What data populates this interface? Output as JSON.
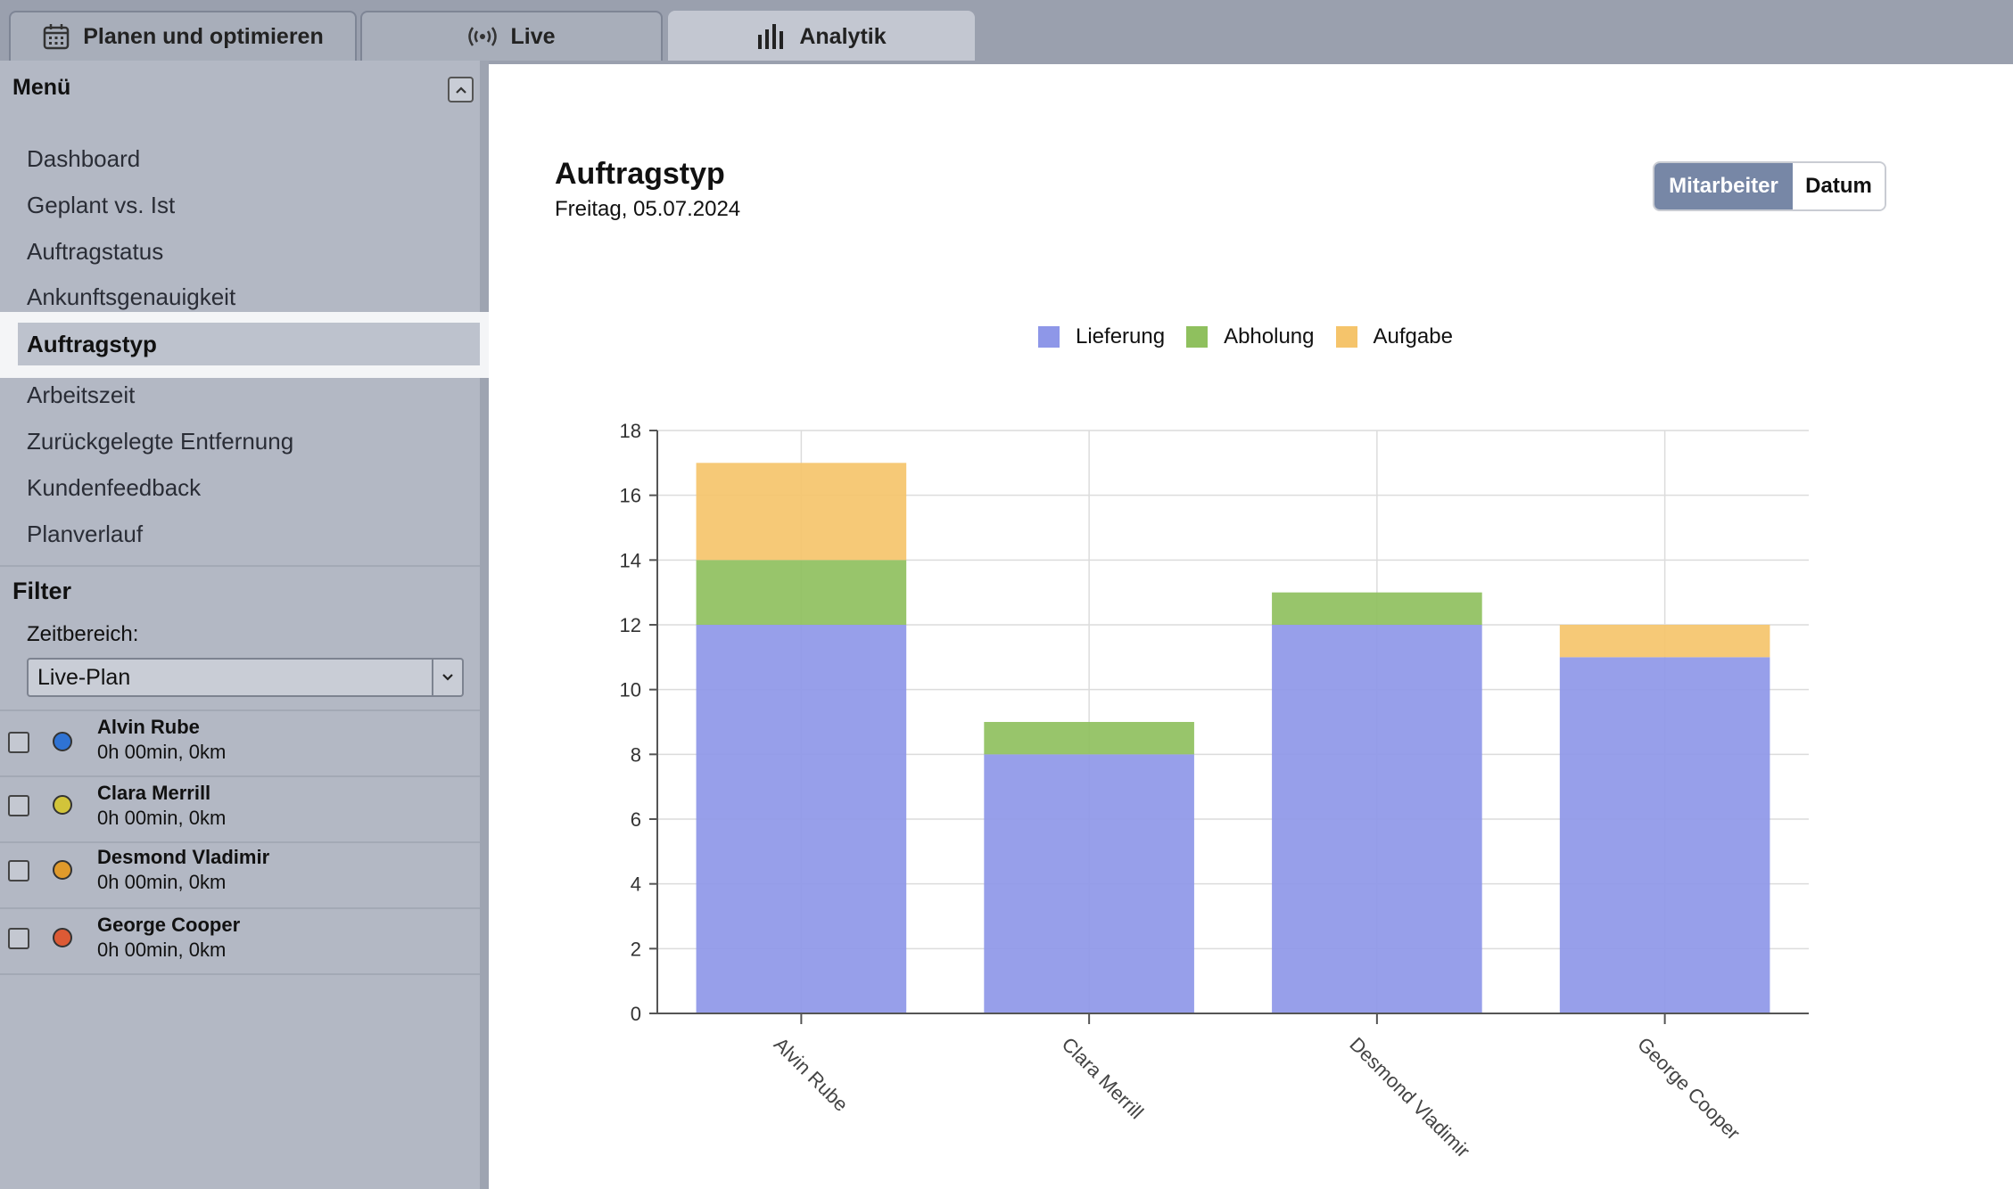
{
  "tabs": [
    {
      "label": "Planen und optimieren",
      "icon": "calendar-icon"
    },
    {
      "label": "Live",
      "icon": "broadcast-icon"
    },
    {
      "label": "Analytik",
      "icon": "bar-chart-icon",
      "active": true
    }
  ],
  "sidebar": {
    "menu_title": "Menü",
    "items": [
      {
        "label": "Dashboard"
      },
      {
        "label": "Geplant vs. Ist"
      },
      {
        "label": "Auftragstatus"
      },
      {
        "label": "Ankunftsgenauigkeit"
      },
      {
        "label": "Auftragstyp",
        "active": true
      },
      {
        "label": "Arbeitszeit"
      },
      {
        "label": "Zurückgelegte Entfernung"
      },
      {
        "label": "Kundenfeedback"
      },
      {
        "label": "Planverlauf"
      }
    ],
    "filter_title": "Filter",
    "range_label": "Zeitbereich:",
    "range_value": "Live-Plan",
    "employees": [
      {
        "name": "Alvin Rube",
        "meta": "0h 00min, 0km",
        "color": "#2f73d4"
      },
      {
        "name": "Clara Merrill",
        "meta": "0h 00min, 0km",
        "color": "#d2c43a"
      },
      {
        "name": "Desmond Vladimir",
        "meta": "0h 00min, 0km",
        "color": "#e09a2b"
      },
      {
        "name": "George Cooper",
        "meta": "0h 00min, 0km",
        "color": "#dc5a35"
      }
    ]
  },
  "main": {
    "title": "Auftragstyp",
    "date": "Freitag, 05.07.2024",
    "toggle": {
      "active": "Mitarbeiter",
      "inactive": "Datum"
    }
  },
  "chart_data": {
    "type": "bar",
    "stacked": true,
    "categories": [
      "Alvin Rube",
      "Clara Merrill",
      "Desmond Vladimir",
      "George Cooper"
    ],
    "series": [
      {
        "name": "Lieferung",
        "color": "#8e97e8",
        "values": [
          12,
          8,
          12,
          11
        ]
      },
      {
        "name": "Abholung",
        "color": "#8fc05e",
        "values": [
          2,
          1,
          1,
          0
        ]
      },
      {
        "name": "Aufgabe",
        "color": "#f5c46b",
        "values": [
          3,
          0,
          0,
          1
        ]
      }
    ],
    "ylim": [
      0,
      18
    ],
    "yticks": [
      0,
      2,
      4,
      6,
      8,
      10,
      12,
      14,
      16,
      18
    ],
    "grid": true,
    "legend": "top-center"
  }
}
